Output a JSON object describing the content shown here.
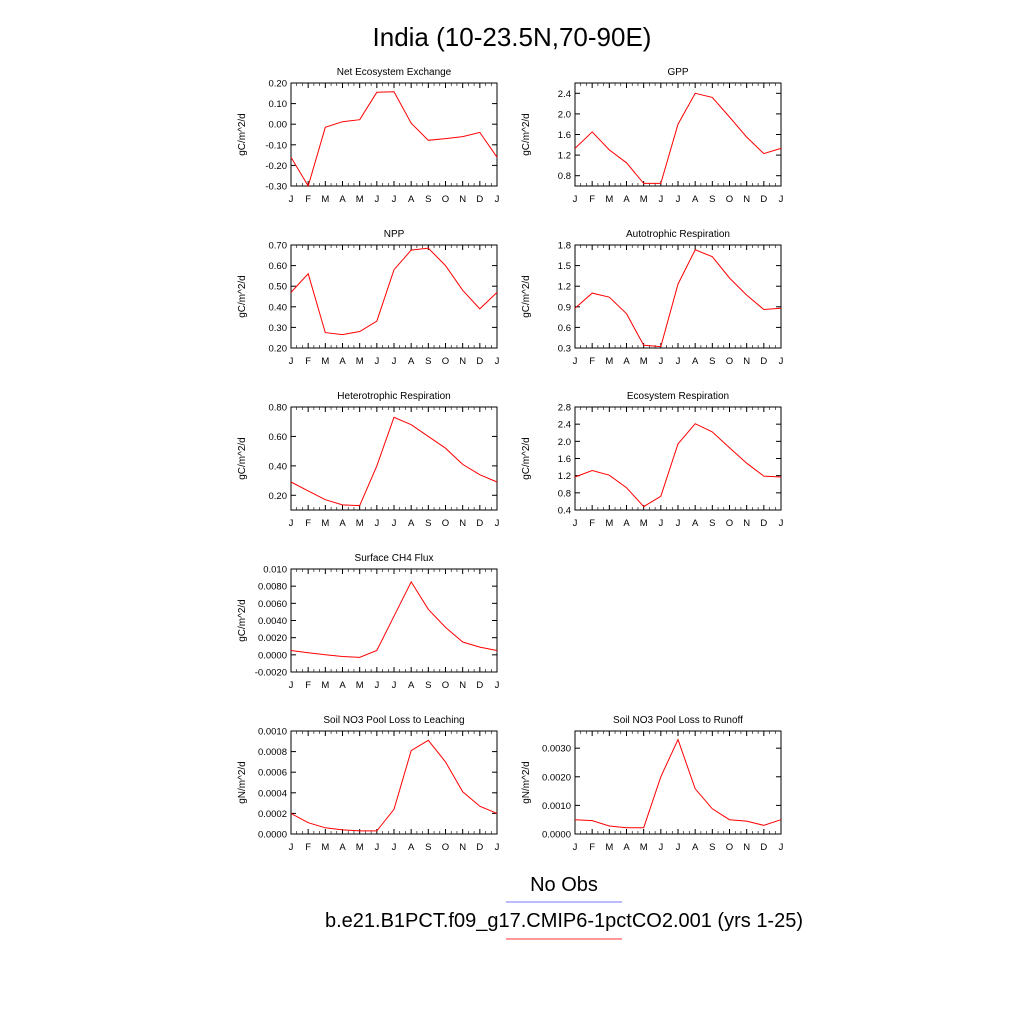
{
  "figure": {
    "title": "India (10-23.5N,70-90E)",
    "legend": [
      {
        "label": "No Obs",
        "color": "#7777ff"
      },
      {
        "label": "b.e21.B1PCT.f09_g17.CMIP6-1pctCO2.001 (yrs 1-25)",
        "color": "#ff3333"
      }
    ],
    "line_color": "#ff0000"
  },
  "chart_data": [
    {
      "type": "line",
      "title": "Net Ecosystem Exchange",
      "ylabel": "gC/m^2/d",
      "x": [
        "J",
        "F",
        "M",
        "A",
        "M",
        "J",
        "J",
        "A",
        "S",
        "O",
        "N",
        "D",
        "J"
      ],
      "values": [
        -0.16,
        -0.3,
        -0.015,
        0.012,
        0.022,
        0.155,
        0.158,
        0.005,
        -0.078,
        -0.07,
        -0.06,
        -0.04,
        -0.16
      ],
      "ylim": [
        -0.3,
        0.2
      ],
      "yticks": [
        -0.3,
        -0.2,
        -0.1,
        0.0,
        0.1,
        0.2
      ],
      "ytick_labels": [
        "-0.30",
        "-0.20",
        "-0.10",
        "0.00",
        "0.10",
        "0.20"
      ]
    },
    {
      "type": "line",
      "title": "GPP",
      "ylabel": "gC/m^2/d",
      "x": [
        "J",
        "F",
        "M",
        "A",
        "M",
        "J",
        "J",
        "A",
        "S",
        "O",
        "N",
        "D",
        "J"
      ],
      "values": [
        1.33,
        1.65,
        1.3,
        1.05,
        0.65,
        0.65,
        1.8,
        2.4,
        2.32,
        1.94,
        1.55,
        1.23,
        1.33
      ],
      "ylim": [
        0.6,
        2.6
      ],
      "yticks": [
        0.8,
        1.2,
        1.6,
        2.0,
        2.4
      ],
      "ytick_labels": [
        "0.8",
        "1.2",
        "1.6",
        "2.0",
        "2.4"
      ]
    },
    {
      "type": "line",
      "title": "NPP",
      "ylabel": "gC/m^2/d",
      "x": [
        "J",
        "F",
        "M",
        "A",
        "M",
        "J",
        "J",
        "A",
        "S",
        "O",
        "N",
        "D",
        "J"
      ],
      "values": [
        0.47,
        0.56,
        0.275,
        0.265,
        0.28,
        0.33,
        0.58,
        0.675,
        0.685,
        0.6,
        0.48,
        0.39,
        0.47
      ],
      "ylim": [
        0.2,
        0.7
      ],
      "yticks": [
        0.2,
        0.3,
        0.4,
        0.5,
        0.6,
        0.7
      ],
      "ytick_labels": [
        "0.20",
        "0.30",
        "0.40",
        "0.50",
        "0.60",
        "0.70"
      ]
    },
    {
      "type": "line",
      "title": "Autotrophic Respiration",
      "ylabel": "gC/m^2/d",
      "x": [
        "J",
        "F",
        "M",
        "A",
        "M",
        "J",
        "J",
        "A",
        "S",
        "O",
        "N",
        "D",
        "J"
      ],
      "values": [
        0.88,
        1.1,
        1.04,
        0.8,
        0.34,
        0.32,
        1.23,
        1.73,
        1.63,
        1.32,
        1.07,
        0.86,
        0.88
      ],
      "ylim": [
        0.3,
        1.8
      ],
      "yticks": [
        0.3,
        0.6,
        0.9,
        1.2,
        1.5,
        1.8
      ],
      "ytick_labels": [
        "0.3",
        "0.6",
        "0.9",
        "1.2",
        "1.5",
        "1.8"
      ]
    },
    {
      "type": "line",
      "title": "Heterotrophic Respiration",
      "ylabel": "gC/m^2/d",
      "x": [
        "J",
        "F",
        "M",
        "A",
        "M",
        "J",
        "J",
        "A",
        "S",
        "O",
        "N",
        "D",
        "J"
      ],
      "values": [
        0.29,
        0.23,
        0.17,
        0.135,
        0.13,
        0.4,
        0.73,
        0.68,
        0.6,
        0.52,
        0.41,
        0.34,
        0.29
      ],
      "ylim": [
        0.1,
        0.8
      ],
      "yticks": [
        0.2,
        0.4,
        0.6,
        0.8
      ],
      "ytick_labels": [
        "0.20",
        "0.40",
        "0.60",
        "0.80"
      ]
    },
    {
      "type": "line",
      "title": "Ecosystem Respiration",
      "ylabel": "gC/m^2/d",
      "x": [
        "J",
        "F",
        "M",
        "A",
        "M",
        "J",
        "J",
        "A",
        "S",
        "O",
        "N",
        "D",
        "J"
      ],
      "values": [
        1.17,
        1.32,
        1.21,
        0.92,
        0.48,
        0.72,
        1.94,
        2.41,
        2.22,
        1.85,
        1.49,
        1.19,
        1.17
      ],
      "ylim": [
        0.4,
        2.8
      ],
      "yticks": [
        0.4,
        0.8,
        1.2,
        1.6,
        2.0,
        2.4,
        2.8
      ],
      "ytick_labels": [
        "0.4",
        "0.8",
        "1.2",
        "1.6",
        "2.0",
        "2.4",
        "2.8"
      ]
    },
    {
      "type": "line",
      "title": "Surface CH4 Flux",
      "ylabel": "gC/m^2/d",
      "x": [
        "J",
        "F",
        "M",
        "A",
        "M",
        "J",
        "J",
        "A",
        "S",
        "O",
        "N",
        "D",
        "J"
      ],
      "values": [
        0.0005,
        0.00025,
        0.0,
        -0.0002,
        -0.0003,
        0.0005,
        0.0045,
        0.0085,
        0.0053,
        0.0032,
        0.0015,
        0.0009,
        0.0005
      ],
      "ylim": [
        -0.002,
        0.01
      ],
      "yticks": [
        -0.002,
        0.0,
        0.002,
        0.004,
        0.006,
        0.008,
        0.01
      ],
      "ytick_labels": [
        "-0.0020",
        "0.0000",
        "0.0020",
        "0.0040",
        "0.0060",
        "0.0080",
        "0.010"
      ]
    },
    {
      "type": "line",
      "title": "Soil NO3 Pool Loss to Leaching",
      "ylabel": "gN/m^2/d",
      "x": [
        "J",
        "F",
        "M",
        "A",
        "M",
        "J",
        "J",
        "A",
        "S",
        "O",
        "N",
        "D",
        "J"
      ],
      "values": [
        0.0002,
        0.00011,
        6e-05,
        4e-05,
        3e-05,
        3e-05,
        0.00024,
        0.00081,
        0.00091,
        0.0007,
        0.00041,
        0.00027,
        0.0002
      ],
      "ylim": [
        0.0,
        0.001
      ],
      "yticks": [
        0.0,
        0.0002,
        0.0004,
        0.0006,
        0.0008,
        0.001
      ],
      "ytick_labels": [
        "0.0000",
        "0.0002",
        "0.0004",
        "0.0006",
        "0.0008",
        "0.0010"
      ]
    },
    {
      "type": "line",
      "title": "Soil NO3 Pool Loss to Runoff",
      "ylabel": "gN/m^2/d",
      "x": [
        "J",
        "F",
        "M",
        "A",
        "M",
        "J",
        "J",
        "A",
        "S",
        "O",
        "N",
        "D",
        "J"
      ],
      "values": [
        0.0005,
        0.00047,
        0.00028,
        0.00022,
        0.00022,
        0.002,
        0.0033,
        0.00158,
        0.00088,
        0.0005,
        0.00045,
        0.0003,
        0.0005
      ],
      "ylim": [
        0.0,
        0.0036
      ],
      "yticks": [
        0.0,
        0.001,
        0.002,
        0.003
      ],
      "ytick_labels": [
        "0.0000",
        "0.0010",
        "0.0020",
        "0.0030"
      ]
    }
  ]
}
